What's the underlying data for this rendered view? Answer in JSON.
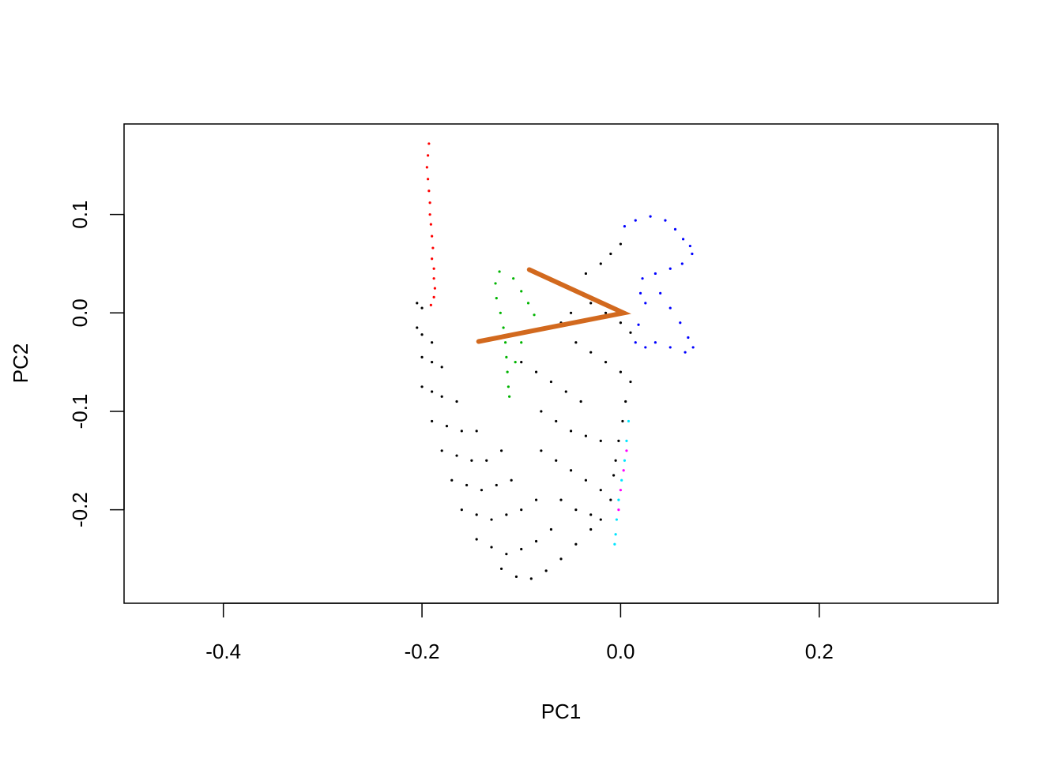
{
  "chart_data": {
    "type": "scatter",
    "title": "",
    "xlabel": "PC1",
    "ylabel": "PC2",
    "xlim": [
      -0.5,
      0.38
    ],
    "ylim": [
      -0.295,
      0.192
    ],
    "x_ticks": [
      -0.4,
      -0.2,
      0.0,
      0.2
    ],
    "x_tick_labels": [
      "-0.4",
      "-0.2",
      "0.0",
      "0.2"
    ],
    "y_ticks": [
      0.1,
      0.0,
      -0.1,
      -0.2
    ],
    "y_tick_labels": [
      "0.1",
      "0.0",
      "-0.1",
      "-0.2"
    ],
    "grid": false,
    "legend": "none",
    "series_colors": {
      "black": "#000000",
      "red": "#ff0000",
      "green": "#00b400",
      "blue": "#0000ff",
      "cyan": "#00e5ff",
      "magenta": "#ff00ff",
      "path": "#d2691e"
    },
    "series": [
      {
        "color": "red",
        "points": [
          [
            -0.193,
            0.172
          ],
          [
            -0.194,
            0.16
          ],
          [
            -0.195,
            0.148
          ],
          [
            -0.194,
            0.136
          ],
          [
            -0.193,
            0.124
          ],
          [
            -0.192,
            0.112
          ],
          [
            -0.192,
            0.1
          ],
          [
            -0.191,
            0.09
          ],
          [
            -0.19,
            0.078
          ],
          [
            -0.189,
            0.066
          ],
          [
            -0.19,
            0.055
          ],
          [
            -0.188,
            0.045
          ],
          [
            -0.188,
            0.035
          ],
          [
            -0.187,
            0.025
          ],
          [
            -0.188,
            0.016
          ],
          [
            -0.191,
            0.008
          ]
        ]
      },
      {
        "color": "green",
        "points": [
          [
            -0.122,
            0.042
          ],
          [
            -0.126,
            0.03
          ],
          [
            -0.125,
            0.015
          ],
          [
            -0.121,
            0.0
          ],
          [
            -0.118,
            -0.015
          ],
          [
            -0.116,
            -0.03
          ],
          [
            -0.115,
            -0.045
          ],
          [
            -0.114,
            -0.06
          ],
          [
            -0.113,
            -0.075
          ],
          [
            -0.112,
            -0.085
          ],
          [
            -0.108,
            0.035
          ],
          [
            -0.1,
            0.022
          ],
          [
            -0.093,
            0.01
          ],
          [
            -0.087,
            -0.002
          ],
          [
            -0.1,
            -0.03
          ],
          [
            -0.106,
            -0.05
          ]
        ]
      },
      {
        "color": "blue",
        "points": [
          [
            0.03,
            0.098
          ],
          [
            0.015,
            0.094
          ],
          [
            0.004,
            0.088
          ],
          [
            0.045,
            0.094
          ],
          [
            0.055,
            0.085
          ],
          [
            0.063,
            0.075
          ],
          [
            0.07,
            0.068
          ],
          [
            0.072,
            0.06
          ],
          [
            0.062,
            0.05
          ],
          [
            0.05,
            0.045
          ],
          [
            0.035,
            0.04
          ],
          [
            0.022,
            0.035
          ],
          [
            0.02,
            0.02
          ],
          [
            0.025,
            0.01
          ],
          [
            0.04,
            0.02
          ],
          [
            0.05,
            0.005
          ],
          [
            0.06,
            -0.01
          ],
          [
            0.068,
            -0.025
          ],
          [
            0.073,
            -0.035
          ],
          [
            0.065,
            -0.04
          ],
          [
            0.05,
            -0.035
          ],
          [
            0.035,
            -0.03
          ],
          [
            0.025,
            -0.035
          ],
          [
            0.015,
            -0.03
          ],
          [
            0.018,
            -0.012
          ]
        ]
      },
      {
        "color": "cyan",
        "points": [
          [
            0.008,
            -0.11
          ],
          [
            0.006,
            -0.13
          ],
          [
            0.004,
            -0.15
          ],
          [
            0.001,
            -0.17
          ],
          [
            -0.002,
            -0.19
          ],
          [
            -0.004,
            -0.21
          ],
          [
            -0.005,
            -0.225
          ],
          [
            -0.006,
            -0.235
          ]
        ]
      },
      {
        "color": "magenta",
        "points": [
          [
            0.006,
            -0.14
          ],
          [
            0.003,
            -0.16
          ],
          [
            0.0,
            -0.18
          ],
          [
            -0.002,
            -0.2
          ]
        ]
      },
      {
        "color": "black",
        "points": [
          [
            -0.205,
            0.01
          ],
          [
            -0.2,
            0.005
          ],
          [
            -0.205,
            -0.015
          ],
          [
            -0.2,
            -0.022
          ],
          [
            -0.19,
            -0.03
          ],
          [
            -0.2,
            -0.045
          ],
          [
            -0.19,
            -0.05
          ],
          [
            -0.18,
            -0.055
          ],
          [
            -0.2,
            -0.075
          ],
          [
            -0.19,
            -0.08
          ],
          [
            -0.18,
            -0.085
          ],
          [
            -0.165,
            -0.09
          ],
          [
            -0.19,
            -0.11
          ],
          [
            -0.175,
            -0.115
          ],
          [
            -0.16,
            -0.12
          ],
          [
            -0.145,
            -0.12
          ],
          [
            -0.18,
            -0.14
          ],
          [
            -0.165,
            -0.145
          ],
          [
            -0.15,
            -0.15
          ],
          [
            -0.135,
            -0.15
          ],
          [
            -0.12,
            -0.14
          ],
          [
            -0.17,
            -0.17
          ],
          [
            -0.155,
            -0.175
          ],
          [
            -0.14,
            -0.18
          ],
          [
            -0.125,
            -0.175
          ],
          [
            -0.11,
            -0.17
          ],
          [
            -0.16,
            -0.2
          ],
          [
            -0.145,
            -0.205
          ],
          [
            -0.13,
            -0.21
          ],
          [
            -0.115,
            -0.205
          ],
          [
            -0.1,
            -0.2
          ],
          [
            -0.085,
            -0.19
          ],
          [
            -0.145,
            -0.23
          ],
          [
            -0.13,
            -0.238
          ],
          [
            -0.115,
            -0.245
          ],
          [
            -0.1,
            -0.24
          ],
          [
            -0.085,
            -0.232
          ],
          [
            -0.07,
            -0.22
          ],
          [
            -0.12,
            -0.26
          ],
          [
            -0.105,
            -0.268
          ],
          [
            -0.09,
            -0.27
          ],
          [
            -0.075,
            -0.262
          ],
          [
            -0.06,
            -0.25
          ],
          [
            -0.045,
            -0.235
          ],
          [
            -0.03,
            -0.22
          ],
          [
            -0.1,
            -0.05
          ],
          [
            -0.085,
            -0.06
          ],
          [
            -0.07,
            -0.07
          ],
          [
            -0.055,
            -0.08
          ],
          [
            -0.04,
            -0.09
          ],
          [
            -0.08,
            -0.1
          ],
          [
            -0.065,
            -0.11
          ],
          [
            -0.05,
            -0.12
          ],
          [
            -0.035,
            -0.125
          ],
          [
            -0.02,
            -0.13
          ],
          [
            -0.08,
            -0.14
          ],
          [
            -0.065,
            -0.15
          ],
          [
            -0.05,
            -0.16
          ],
          [
            -0.035,
            -0.17
          ],
          [
            -0.02,
            -0.18
          ],
          [
            -0.01,
            -0.19
          ],
          [
            -0.06,
            -0.19
          ],
          [
            -0.045,
            -0.2
          ],
          [
            -0.03,
            -0.205
          ],
          [
            -0.02,
            -0.21
          ],
          [
            -0.045,
            -0.03
          ],
          [
            -0.03,
            -0.04
          ],
          [
            -0.015,
            -0.05
          ],
          [
            0.0,
            -0.06
          ],
          [
            0.01,
            -0.07
          ],
          [
            -0.03,
            0.01
          ],
          [
            -0.015,
            0.0
          ],
          [
            0.0,
            -0.01
          ],
          [
            0.01,
            -0.02
          ],
          [
            -0.035,
            0.04
          ],
          [
            -0.02,
            0.05
          ],
          [
            -0.01,
            0.06
          ],
          [
            0.0,
            0.07
          ],
          [
            -0.04,
            0.02
          ],
          [
            -0.05,
            0.0
          ],
          [
            -0.06,
            -0.01
          ],
          [
            0.005,
            -0.09
          ],
          [
            0.002,
            -0.11
          ],
          [
            -0.002,
            -0.13
          ],
          [
            -0.005,
            -0.15
          ],
          [
            -0.007,
            -0.165
          ]
        ]
      }
    ],
    "path": [
      [
        -0.092,
        0.044
      ],
      [
        0.003,
        0.0
      ],
      [
        -0.143,
        -0.029
      ]
    ]
  }
}
